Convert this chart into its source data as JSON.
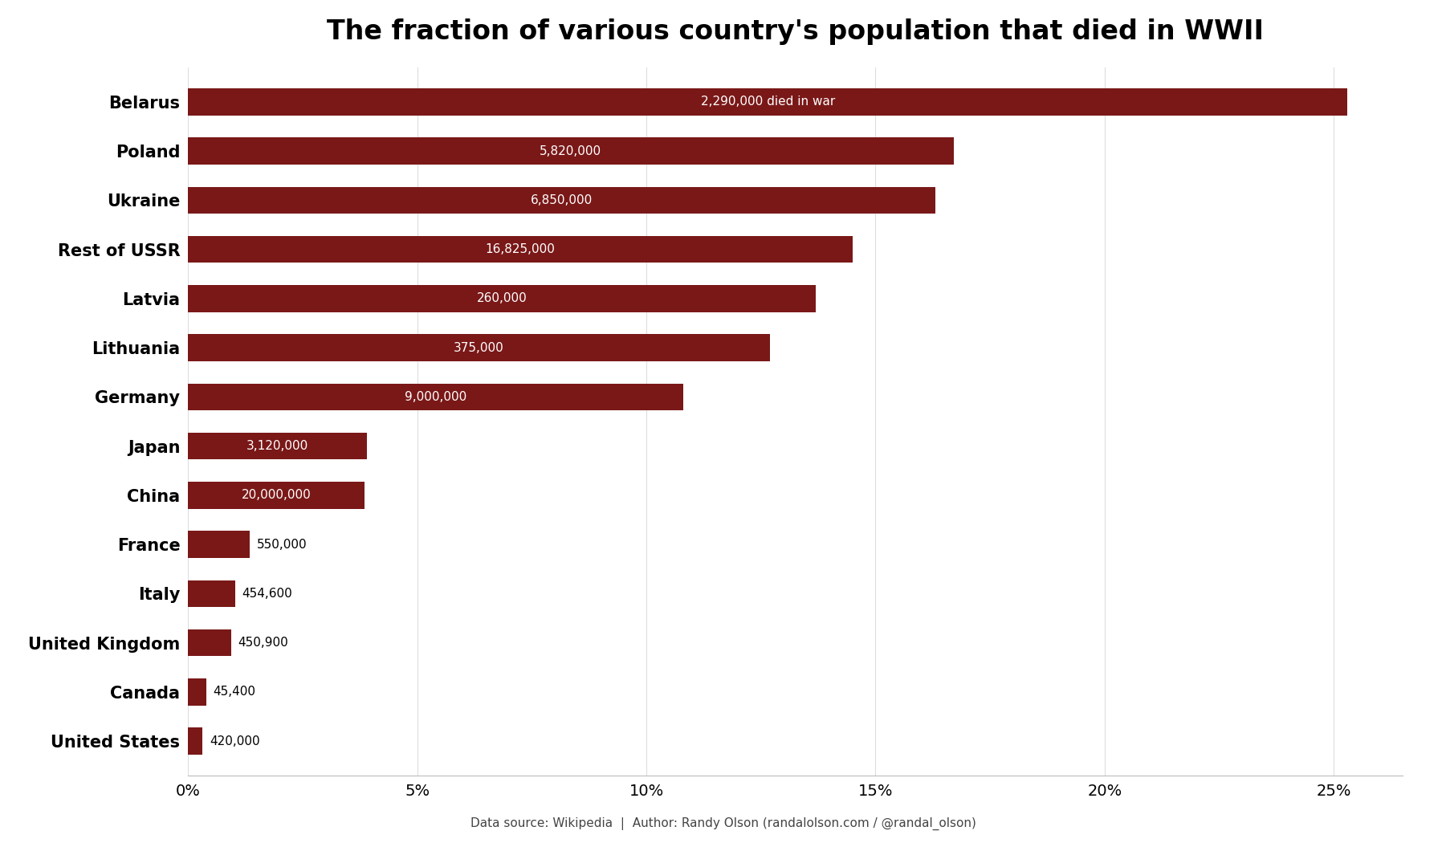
{
  "title": "The fraction of various country's population that died in WWII",
  "countries": [
    "Belarus",
    "Poland",
    "Ukraine",
    "Rest of USSR",
    "Latvia",
    "Lithuania",
    "Germany",
    "Japan",
    "China",
    "France",
    "Italy",
    "United Kingdom",
    "Canada",
    "United States"
  ],
  "percentages": [
    25.3,
    16.7,
    16.3,
    14.5,
    13.7,
    12.7,
    10.8,
    3.9,
    3.86,
    1.35,
    1.03,
    0.94,
    0.4,
    0.32
  ],
  "casualties": [
    "2,290,000 died in war",
    "5,820,000",
    "6,850,000",
    "16,825,000",
    "260,000",
    "375,000",
    "9,000,000",
    "3,120,000",
    "20,000,000",
    "550,000",
    "454,600",
    "450,900",
    "45,400",
    "420,000"
  ],
  "bar_color": "#7a1818",
  "bar_height": 0.55,
  "background_color": "#ffffff",
  "title_fontsize": 24,
  "label_fontsize": 15,
  "tick_fontsize": 14,
  "annotation_fontsize": 11,
  "footer_text": "Data source: Wikipedia  |  Author: Randy Olson (randalolson.com / @randal_olson)",
  "footer_fontsize": 11,
  "xlim": [
    0,
    26.5
  ],
  "xticks": [
    0,
    5,
    10,
    15,
    20,
    25
  ],
  "xtick_labels": [
    "0%",
    "5%",
    "10%",
    "15%",
    "20%",
    "25%"
  ],
  "inside_label_threshold": 2.0
}
